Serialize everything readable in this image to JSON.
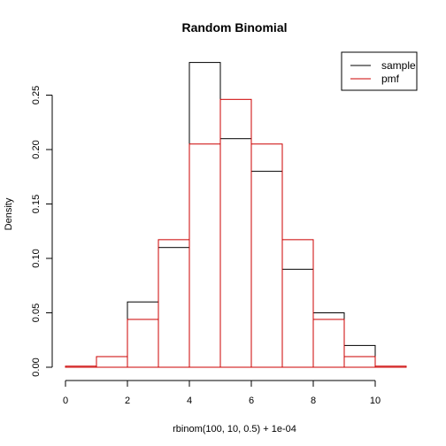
{
  "chart_data": {
    "type": "bar",
    "title": "Random Binomial",
    "xlabel": "rbinom(100, 10, 0.5) + 1e-04",
    "ylabel": "Density",
    "xlim": [
      0,
      11
    ],
    "ylim": [
      0,
      0.28
    ],
    "x_ticks": [
      0,
      2,
      4,
      6,
      8,
      10
    ],
    "y_ticks": [
      0.0,
      0.05,
      0.1,
      0.15,
      0.2,
      0.25
    ],
    "y_tick_labels": [
      "0.00",
      "0.05",
      "0.10",
      "0.15",
      "0.20",
      "0.25"
    ],
    "bin_edges": [
      0,
      1,
      2,
      3,
      4,
      5,
      6,
      7,
      8,
      9,
      10,
      11
    ],
    "legend_position": "top-right",
    "series": [
      {
        "name": "sample",
        "color": "#000000",
        "bins": [
          {
            "x0": 2,
            "x1": 3,
            "y": 0.06
          },
          {
            "x0": 3,
            "x1": 4,
            "y": 0.11
          },
          {
            "x0": 4,
            "x1": 5,
            "y": 0.28
          },
          {
            "x0": 5,
            "x1": 6,
            "y": 0.21
          },
          {
            "x0": 6,
            "x1": 7,
            "y": 0.18
          },
          {
            "x0": 7,
            "x1": 8,
            "y": 0.09
          },
          {
            "x0": 8,
            "x1": 9,
            "y": 0.05
          },
          {
            "x0": 9,
            "x1": 10,
            "y": 0.02
          }
        ]
      },
      {
        "name": "pmf",
        "color": "#cc0000",
        "bins": [
          {
            "x0": 0,
            "x1": 1,
            "y": 0.00098
          },
          {
            "x0": 1,
            "x1": 2,
            "y": 0.00977
          },
          {
            "x0": 2,
            "x1": 3,
            "y": 0.04395
          },
          {
            "x0": 3,
            "x1": 4,
            "y": 0.11719
          },
          {
            "x0": 4,
            "x1": 5,
            "y": 0.20508
          },
          {
            "x0": 5,
            "x1": 6,
            "y": 0.24609
          },
          {
            "x0": 6,
            "x1": 7,
            "y": 0.20508
          },
          {
            "x0": 7,
            "x1": 8,
            "y": 0.11719
          },
          {
            "x0": 8,
            "x1": 9,
            "y": 0.04395
          },
          {
            "x0": 9,
            "x1": 10,
            "y": 0.00977
          },
          {
            "x0": 10,
            "x1": 11,
            "y": 0.00098
          }
        ]
      }
    ]
  }
}
